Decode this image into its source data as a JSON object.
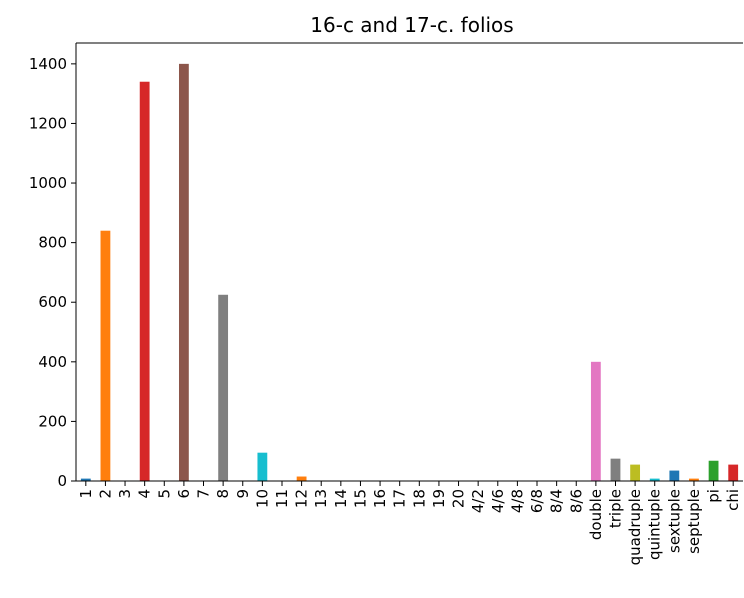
{
  "chart_data": {
    "type": "bar",
    "title": "16-c and 17-c. folios",
    "xlabel": "",
    "ylabel": "",
    "ylim": [
      0,
      1470
    ],
    "yticks": [
      0,
      200,
      400,
      600,
      800,
      1000,
      1200,
      1400
    ],
    "ytick_labels": [
      "0",
      "200",
      "400",
      "600",
      "800",
      "1000",
      "1200",
      "1400"
    ],
    "grid": false,
    "legend": "none",
    "categories": [
      "1",
      "2",
      "3",
      "4",
      "5",
      "6",
      "7",
      "8",
      "9",
      "10",
      "11",
      "12",
      "13",
      "14",
      "15",
      "16",
      "17",
      "18",
      "19",
      "20",
      "4/2",
      "4/6",
      "4/8",
      "6/8",
      "8/4",
      "8/6",
      "double",
      "triple",
      "quadruple",
      "quintuple",
      "sextuple",
      "septuple",
      "pi",
      "chi"
    ],
    "values": [
      8,
      840,
      0,
      1340,
      0,
      1400,
      0,
      625,
      0,
      95,
      0,
      15,
      0,
      0,
      0,
      0,
      0,
      0,
      0,
      0,
      0,
      0,
      0,
      0,
      0,
      0,
      400,
      75,
      55,
      8,
      35,
      8,
      68,
      55
    ],
    "colors": [
      "#1f77b4",
      "#ff7f0e",
      "#2ca02c",
      "#d62728",
      "#9467bd",
      "#8c564b",
      "#e377c2",
      "#7f7f7f",
      "#bcbd22",
      "#17becf"
    ]
  }
}
